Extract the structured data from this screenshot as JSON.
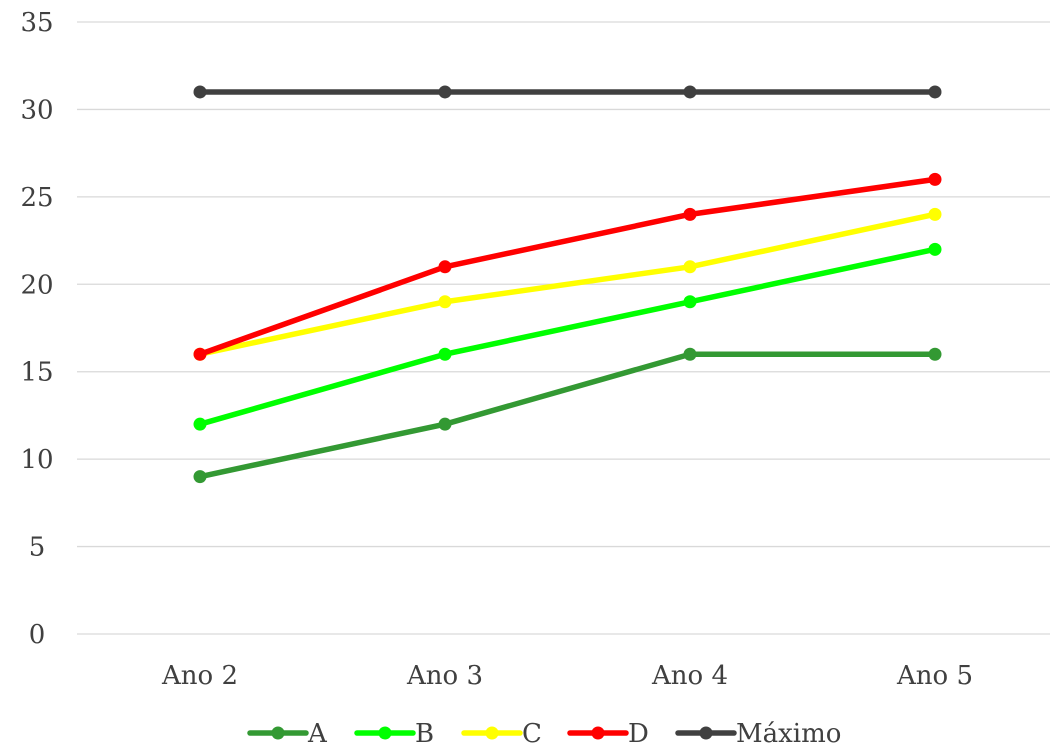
{
  "chart_data": {
    "type": "line",
    "title": "",
    "xlabel": "",
    "ylabel": "",
    "categories": [
      "Ano 2",
      "Ano 3",
      "Ano 4",
      "Ano 5"
    ],
    "ylim": [
      0,
      35
    ],
    "y_ticks": [
      0,
      5,
      10,
      15,
      20,
      25,
      30,
      35
    ],
    "grid": true,
    "legend_position": "bottom",
    "series": [
      {
        "name": "A",
        "color": "#339933",
        "values": [
          9,
          12,
          16,
          16
        ]
      },
      {
        "name": "B",
        "color": "#00ff00",
        "values": [
          12,
          16,
          19,
          22
        ]
      },
      {
        "name": "C",
        "color": "#ffff00",
        "values": [
          16,
          19,
          21,
          24
        ]
      },
      {
        "name": "D",
        "color": "#ff0000",
        "values": [
          16,
          21,
          24,
          26
        ]
      },
      {
        "name": "Máximo",
        "color": "#404040",
        "values": [
          31,
          31,
          31,
          31
        ]
      }
    ]
  }
}
